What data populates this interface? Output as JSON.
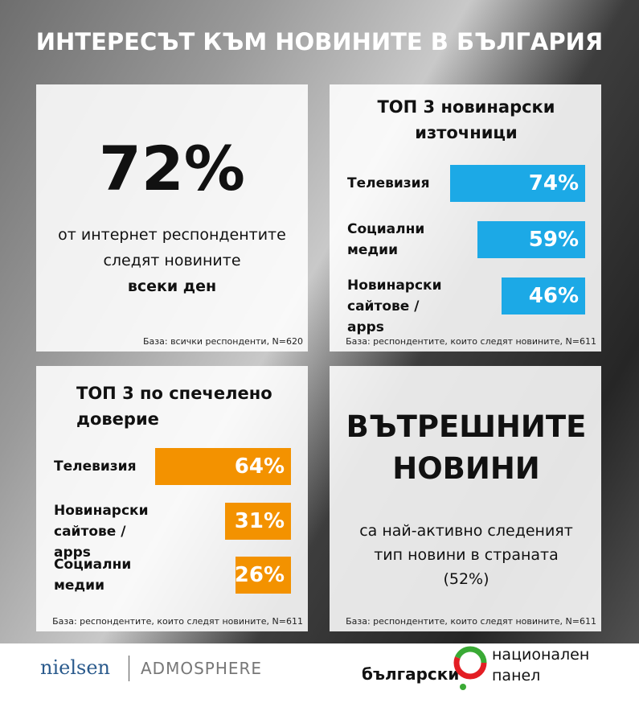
{
  "title": "ИНТЕРЕСЪТ КЪМ НОВИНИТЕ В БЪЛГАРИЯ",
  "daily": {
    "headline": "72%",
    "line1": "от интернет респондентите",
    "line2": "следят новините",
    "line3": "всеки ден",
    "note": "База: всички респонденти, N=620"
  },
  "chart_data": [
    {
      "type": "bar",
      "title": "ТОП 3 новинарски източници",
      "categories": [
        "Телевизия",
        "Социални медии",
        "Новинарски сайтове / apps"
      ],
      "values": [
        74,
        59,
        46
      ],
      "value_labels": [
        "74%",
        "59%",
        "46%"
      ],
      "color": "#1ca9e6",
      "note": "База: респондентите, които следят новините, N=611"
    },
    {
      "type": "bar",
      "title": "ТОП 3 по спечелено доверие",
      "categories": [
        "Телевизия",
        "Новинарски сайтове / apps",
        "Социални медии"
      ],
      "values": [
        64,
        31,
        26
      ],
      "value_labels": [
        "64%",
        "31%",
        "26%"
      ],
      "color": "#f39200",
      "note": "База: респондентите, които следят новините, N=611"
    }
  ],
  "domestic": {
    "headline": "ВЪТРЕШНИТЕ НОВИНИ",
    "text": "са най-активно следеният тип новини в страната (52%)",
    "note": "База: респондентите, които следят новините, N=611"
  },
  "logos": {
    "nielsen": "nielsen",
    "admosphere": "ADMOSPHERE",
    "panel_left": "български",
    "panel_right_1": "национален",
    "panel_right_2": "панел"
  }
}
